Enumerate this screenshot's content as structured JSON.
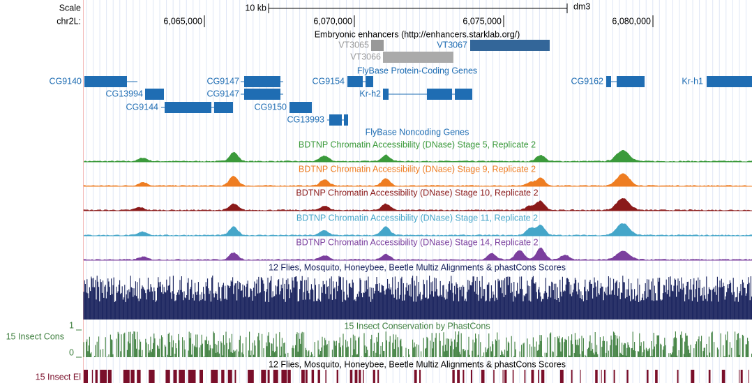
{
  "header": {
    "scale": "Scale",
    "chrom": "chr2L:",
    "scale_bar": "10 kb",
    "assembly": "dm3",
    "ticks": [
      "6,065,000",
      "6,070,000",
      "6,075,000",
      "6,080,000"
    ]
  },
  "enhancers": {
    "title": "Embryonic enhancers (http://enhancers.starklab.org/)",
    "features": [
      "VT3065",
      "VT3067",
      "VT3066"
    ]
  },
  "protein_coding": {
    "title": "FlyBase Protein-Coding Genes",
    "genes": [
      "CG9140",
      "CG13994",
      "CG9144",
      "CG9147",
      "CG9147",
      "CG9150",
      "CG13993",
      "CG9154",
      "Kr-h2",
      "CG9162",
      "Kr-h1"
    ]
  },
  "noncoding": {
    "title": "FlyBase Noncoding Genes"
  },
  "accessibility": [
    "BDTNP Chromatin Accessibility (DNase) Stage 5, Replicate 2",
    "BDTNP Chromatin Accessibility (DNase) Stage 9, Replicate 2",
    "BDTNP Chromatin Accessibility (DNase) Stage 10, Replicate 2",
    "BDTNP Chromatin Accessibility (DNase) Stage 11, Replicate 2",
    "BDTNP Chromatin Accessibility (DNase) Stage 14, Replicate 2"
  ],
  "multiz": {
    "title": "12 Flies, Mosquito, Honeybee, Beetle Multiz Alignments & phastCons Scores"
  },
  "phastcons": {
    "title": "15 Insect Conservation by PhastCons",
    "label": "15 Insect Cons",
    "max_label": "1",
    "min_label": "0"
  },
  "elements": {
    "title": "12 Flies, Mosquito, Honeybee, Beetle Multiz Alignments & phastCons Scores",
    "label": "15 Insect El"
  }
}
